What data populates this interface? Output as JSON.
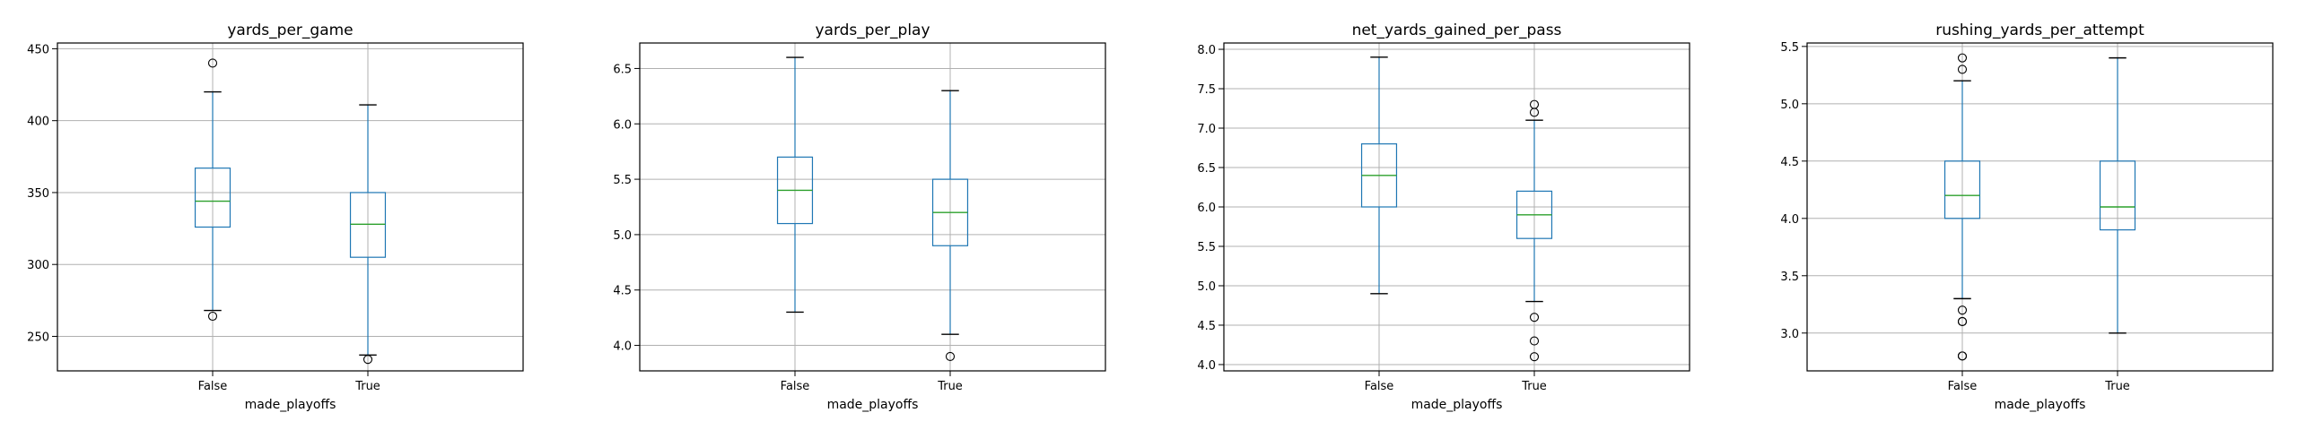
{
  "chart_data": [
    {
      "type": "box",
      "title": "yards_per_game",
      "xlabel": "made_playoffs",
      "categories": [
        "False",
        "True"
      ],
      "ylim": [
        226,
        454
      ],
      "yticks": [
        250,
        300,
        350,
        400,
        450
      ],
      "grid": true,
      "boxes": [
        {
          "category": "False",
          "whisker_low": 268,
          "q1": 326,
          "median": 344,
          "q3": 367,
          "whisker_high": 420,
          "outliers": [
            264,
            440
          ]
        },
        {
          "category": "True",
          "whisker_low": 237,
          "q1": 305,
          "median": 328,
          "q3": 350,
          "whisker_high": 411,
          "outliers": [
            234
          ]
        }
      ]
    },
    {
      "type": "box",
      "title": "yards_per_play",
      "xlabel": "made_playoffs",
      "categories": [
        "False",
        "True"
      ],
      "ylim": [
        3.77,
        6.73
      ],
      "yticks": [
        4.0,
        4.5,
        5.0,
        5.5,
        6.0,
        6.5
      ],
      "grid": true,
      "boxes": [
        {
          "category": "False",
          "whisker_low": 4.3,
          "q1": 5.1,
          "median": 5.4,
          "q3": 5.7,
          "whisker_high": 6.6,
          "outliers": []
        },
        {
          "category": "True",
          "whisker_low": 4.1,
          "q1": 4.9,
          "median": 5.2,
          "q3": 5.5,
          "whisker_high": 6.3,
          "outliers": [
            3.9
          ]
        }
      ]
    },
    {
      "type": "box",
      "title": "net_yards_gained_per_pass",
      "xlabel": "made_playoffs",
      "categories": [
        "False",
        "True"
      ],
      "ylim": [
        3.92,
        8.08
      ],
      "yticks": [
        4.0,
        4.5,
        5.0,
        5.5,
        6.0,
        6.5,
        7.0,
        7.5,
        8.0
      ],
      "grid": true,
      "boxes": [
        {
          "category": "False",
          "whisker_low": 4.9,
          "q1": 6.0,
          "median": 6.4,
          "q3": 6.8,
          "whisker_high": 7.9,
          "outliers": []
        },
        {
          "category": "True",
          "whisker_low": 4.8,
          "q1": 5.6,
          "median": 5.9,
          "q3": 6.2,
          "whisker_high": 7.1,
          "outliers": [
            7.3,
            7.2,
            4.6,
            4.3,
            4.1
          ]
        }
      ]
    },
    {
      "type": "box",
      "title": "rushing_yards_per_attempt",
      "xlabel": "made_playoffs",
      "categories": [
        "False",
        "True"
      ],
      "ylim": [
        2.67,
        5.53
      ],
      "yticks": [
        3.0,
        3.5,
        4.0,
        4.5,
        5.0,
        5.5
      ],
      "grid": true,
      "boxes": [
        {
          "category": "False",
          "whisker_low": 3.3,
          "q1": 4.0,
          "median": 4.2,
          "q3": 4.5,
          "whisker_high": 5.2,
          "outliers": [
            5.4,
            5.3,
            3.2,
            3.1,
            3.1,
            2.8,
            2.8
          ]
        },
        {
          "category": "True",
          "whisker_low": 3.0,
          "q1": 3.9,
          "median": 4.1,
          "q3": 4.5,
          "whisker_high": 5.4,
          "outliers": []
        }
      ]
    }
  ]
}
